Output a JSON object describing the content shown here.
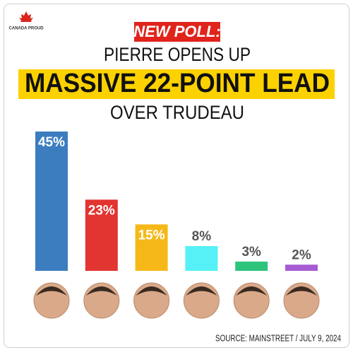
{
  "chart_data": {
    "type": "bar",
    "logo": "CANADA PROUD",
    "kicker": "NEW POLL:",
    "title": "PIERRE OPENS UP",
    "headline": "MASSIVE 22-POINT LEAD",
    "subtitle": "OVER TRUDEAU",
    "categories": [
      null,
      null,
      null,
      null,
      null,
      null
    ],
    "values": [
      45,
      23,
      15,
      8,
      3,
      2
    ],
    "value_labels": [
      "45%",
      "23%",
      "15%",
      "8%",
      "3%",
      "2%"
    ],
    "colors": [
      "#3b7dbf",
      "#e23431",
      "#f6b819",
      "#55f1f6",
      "#2fc47c",
      "#a65bd3"
    ],
    "source": "SOURCE: MAINSTREET / JULY 9, 2024"
  }
}
